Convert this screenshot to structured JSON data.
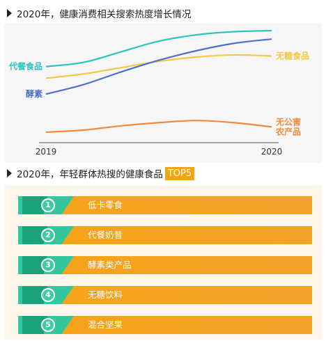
{
  "section1": {
    "title": "2020年，健康消费相关搜索热度增长情况"
  },
  "section2": {
    "title": "2020年，年轻群体热搜的健康食品",
    "badge": "TOP5"
  },
  "chart_data": {
    "type": "line",
    "title": "2020年，健康消费相关搜索热度增长情况",
    "x": [
      "2019",
      "2020"
    ],
    "ylim": [
      0,
      100
    ],
    "grid": false,
    "legend": "series names labeled at line ends",
    "series": [
      {
        "name": "代餐食品",
        "color": "#2cc4c0",
        "label_side": "left",
        "values": [
          66,
          100
        ],
        "curve": [
          66,
          70,
          80,
          90,
          96,
          99,
          100
        ]
      },
      {
        "name": "无糖食品",
        "color": "#f5c842",
        "label_side": "right",
        "values": [
          55,
          76
        ],
        "curve": [
          55,
          59,
          65,
          71,
          75,
          77,
          76
        ]
      },
      {
        "name": "酵素",
        "color": "#4f6fc8",
        "label_side": "left",
        "values": [
          40,
          92
        ],
        "curve": [
          40,
          49,
          61,
          72,
          81,
          88,
          92
        ]
      },
      {
        "name": "无公害\n农产品",
        "color": "#ef8a3c",
        "label_side": "right",
        "values": [
          4,
          9
        ],
        "curve": [
          4,
          6,
          10,
          13,
          15,
          13,
          9
        ]
      }
    ]
  },
  "top5": {
    "items": [
      {
        "rank": "1",
        "label": "低卡零食"
      },
      {
        "rank": "2",
        "label": "代餐奶昔"
      },
      {
        "rank": "3",
        "label": "酵素类产品"
      },
      {
        "rank": "4",
        "label": "无糖饮料"
      },
      {
        "rank": "5",
        "label": "混合坚果"
      }
    ]
  }
}
